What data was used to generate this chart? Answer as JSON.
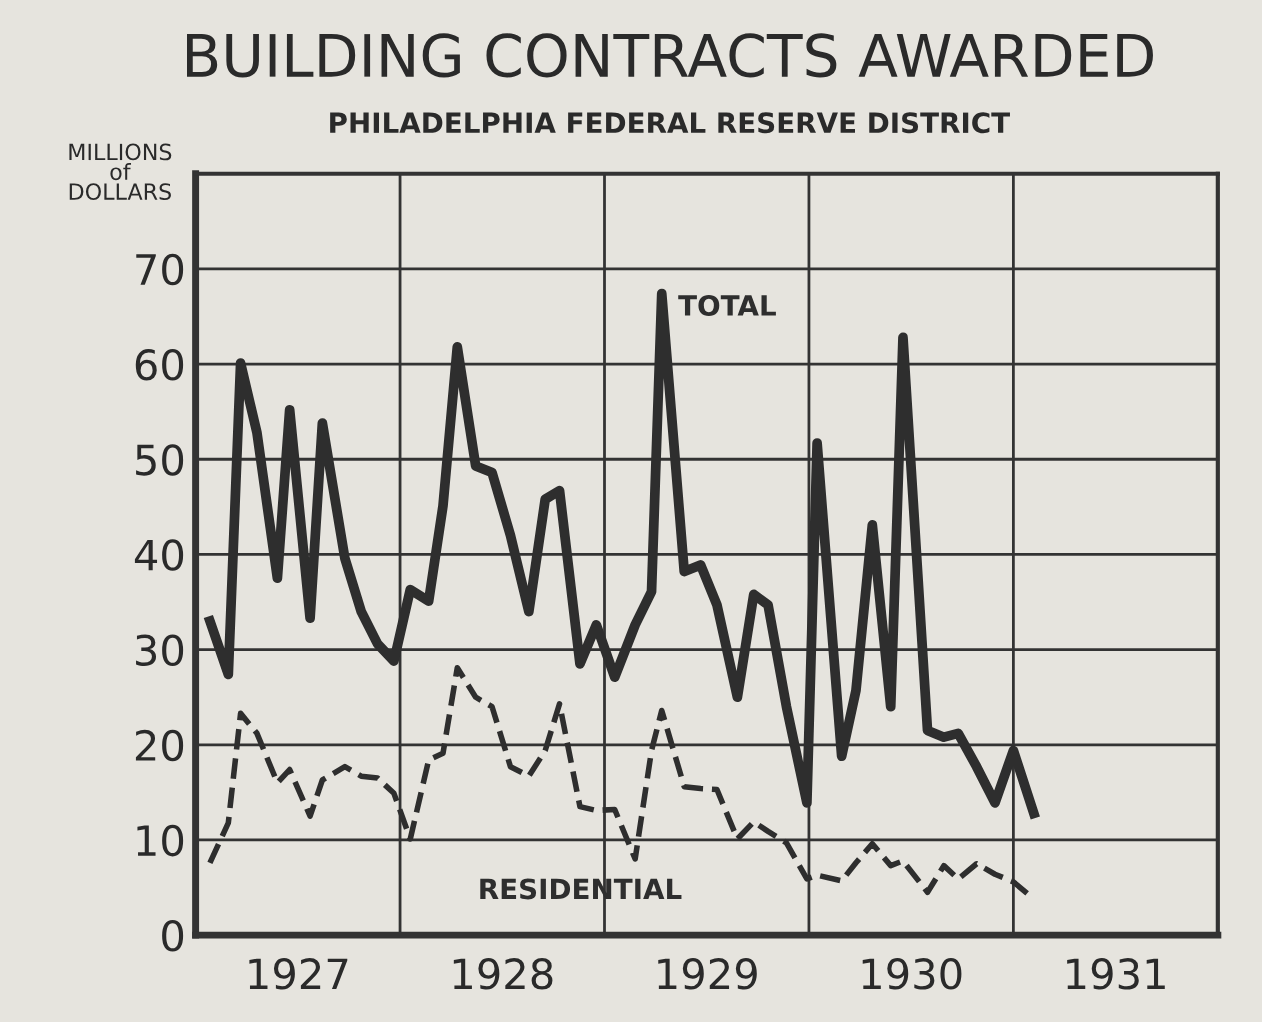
{
  "chart_data": {
    "type": "line",
    "title": "BUILDING CONTRACTS AWARDED",
    "subtitle": "PHILADELPHIA FEDERAL RESERVE DISTRICT",
    "ylabel": "MILLIONS\nof\nDOLLARS",
    "x": [
      1927.07,
      1927.16,
      1927.22,
      1927.3,
      1927.4,
      1927.46,
      1927.56,
      1927.62,
      1927.73,
      1927.81,
      1927.89,
      1927.97,
      1928.05,
      1928.14,
      1928.21,
      1928.28,
      1928.37,
      1928.45,
      1928.54,
      1928.63,
      1928.71,
      1928.78,
      1928.88,
      1928.96,
      1929.05,
      1929.15,
      1929.23,
      1929.28,
      1929.39,
      1929.47,
      1929.55,
      1929.65,
      1929.73,
      1929.8,
      1929.89,
      1929.99,
      1930.04,
      1930.16,
      1930.23,
      1930.31,
      1930.4,
      1930.46,
      1930.58,
      1930.66,
      1930.73,
      1930.82,
      1930.91,
      1931.0,
      1931.1
    ],
    "series": [
      {
        "name": "TOTAL",
        "color": "#2e2e2e",
        "line_style": "solid",
        "values": [
          33.0,
          27.4,
          60.1,
          52.8,
          37.5,
          55.2,
          33.3,
          53.8,
          39.6,
          34.0,
          30.6,
          28.8,
          36.3,
          35.1,
          45.1,
          61.8,
          49.3,
          48.6,
          42,
          34.0,
          45.8,
          46.7,
          28.5,
          32.6,
          27.1,
          32.6,
          36.1,
          67.4,
          38.2,
          38.9,
          34.7,
          25.0,
          35.8,
          34.7,
          24,
          13.9,
          51.7,
          18.8,
          25.7,
          43.1,
          24.0,
          62.8,
          21.5,
          20.8,
          21.2,
          17.7,
          13.9,
          19.4,
          12.8
        ]
      },
      {
        "name": "RESIDENTIAL",
        "color": "#2e2e2e",
        "line_style": "dashed",
        "values": [
          7.6,
          11.8,
          23.3,
          21.2,
          16.0,
          17.4,
          12.5,
          16.3,
          17.7,
          16.7,
          16.5,
          14.9,
          10.1,
          18.4,
          19.1,
          28.1,
          25.0,
          24.0,
          17.7,
          16.7,
          19.4,
          24.3,
          13.5,
          13.1,
          13.2,
          8.0,
          19.4,
          23.6,
          15.6,
          15.4,
          15.3,
          10.1,
          11.9,
          10.9,
          9.7,
          5.9,
          6.3,
          5.7,
          7.6,
          9.6,
          7.3,
          7.8,
          4.5,
          7.3,
          5.9,
          7.5,
          6.4,
          5.6,
          3.8
        ]
      }
    ],
    "xlim": [
      1927,
      1932
    ],
    "xticks": [
      {
        "value": 1927.5,
        "label": "1927"
      },
      {
        "value": 1928,
        "label": null
      },
      {
        "value": 1928.5,
        "label": "1928"
      },
      {
        "value": 1929,
        "label": null
      },
      {
        "value": 1929.5,
        "label": "1929"
      },
      {
        "value": 1930,
        "label": null
      },
      {
        "value": 1930.5,
        "label": "1930"
      },
      {
        "value": 1931,
        "label": null
      },
      {
        "value": 1931.5,
        "label": "1931"
      }
    ],
    "ylim": [
      0,
      80
    ],
    "yticks": [
      0,
      10,
      20,
      30,
      40,
      50,
      60,
      70
    ],
    "grid": true,
    "legend": false
  }
}
